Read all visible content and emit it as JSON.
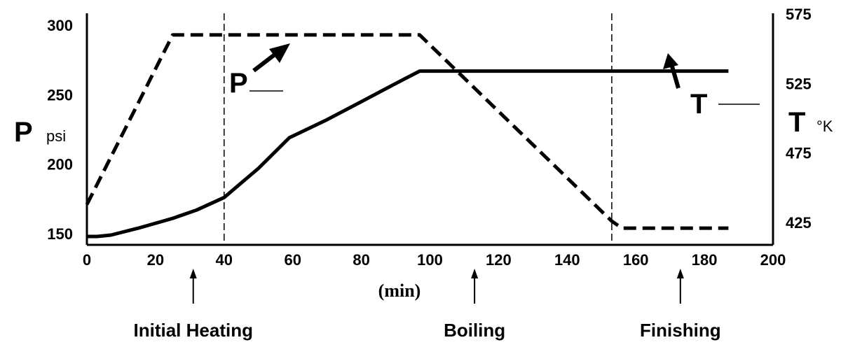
{
  "chart_data": {
    "type": "line",
    "title": "",
    "xlabel": "(min)",
    "xlim": [
      0,
      200
    ],
    "x_ticks": [
      "0",
      "20",
      "40",
      "60",
      "80",
      "100",
      "120",
      "140",
      "160",
      "180",
      "200"
    ],
    "left_axis": {
      "symbol": "P",
      "unit": "psi",
      "ylim": [
        150,
        300
      ],
      "ticks": [
        "150",
        "200",
        "250",
        "300"
      ]
    },
    "right_axis": {
      "symbol": "T",
      "unit": "°K",
      "ylim": [
        425,
        575
      ],
      "ticks": [
        "425",
        "475",
        "525",
        "575"
      ]
    },
    "series": [
      {
        "name": "P",
        "axis": "left",
        "style": "dashed",
        "x": [
          0,
          25,
          97,
          153,
          156,
          187
        ],
        "y": [
          171,
          293,
          293,
          159,
          154,
          154
        ]
      },
      {
        "name": "T",
        "axis": "right",
        "style": "solid",
        "x": [
          0,
          3,
          7,
          15,
          25,
          32,
          40,
          50,
          59,
          70,
          80,
          90,
          97,
          120,
          150,
          187
        ],
        "y": [
          423,
          423,
          424,
          429,
          436,
          442,
          451,
          472,
          494,
          507,
          520,
          533,
          542,
          542,
          542,
          542
        ]
      }
    ],
    "phase_boundaries": [
      40,
      153
    ],
    "phases": [
      {
        "label": "Initial Heating",
        "x": 31
      },
      {
        "label": "Boiling",
        "x": 113
      },
      {
        "label": "Finishing",
        "x": 173
      }
    ]
  }
}
